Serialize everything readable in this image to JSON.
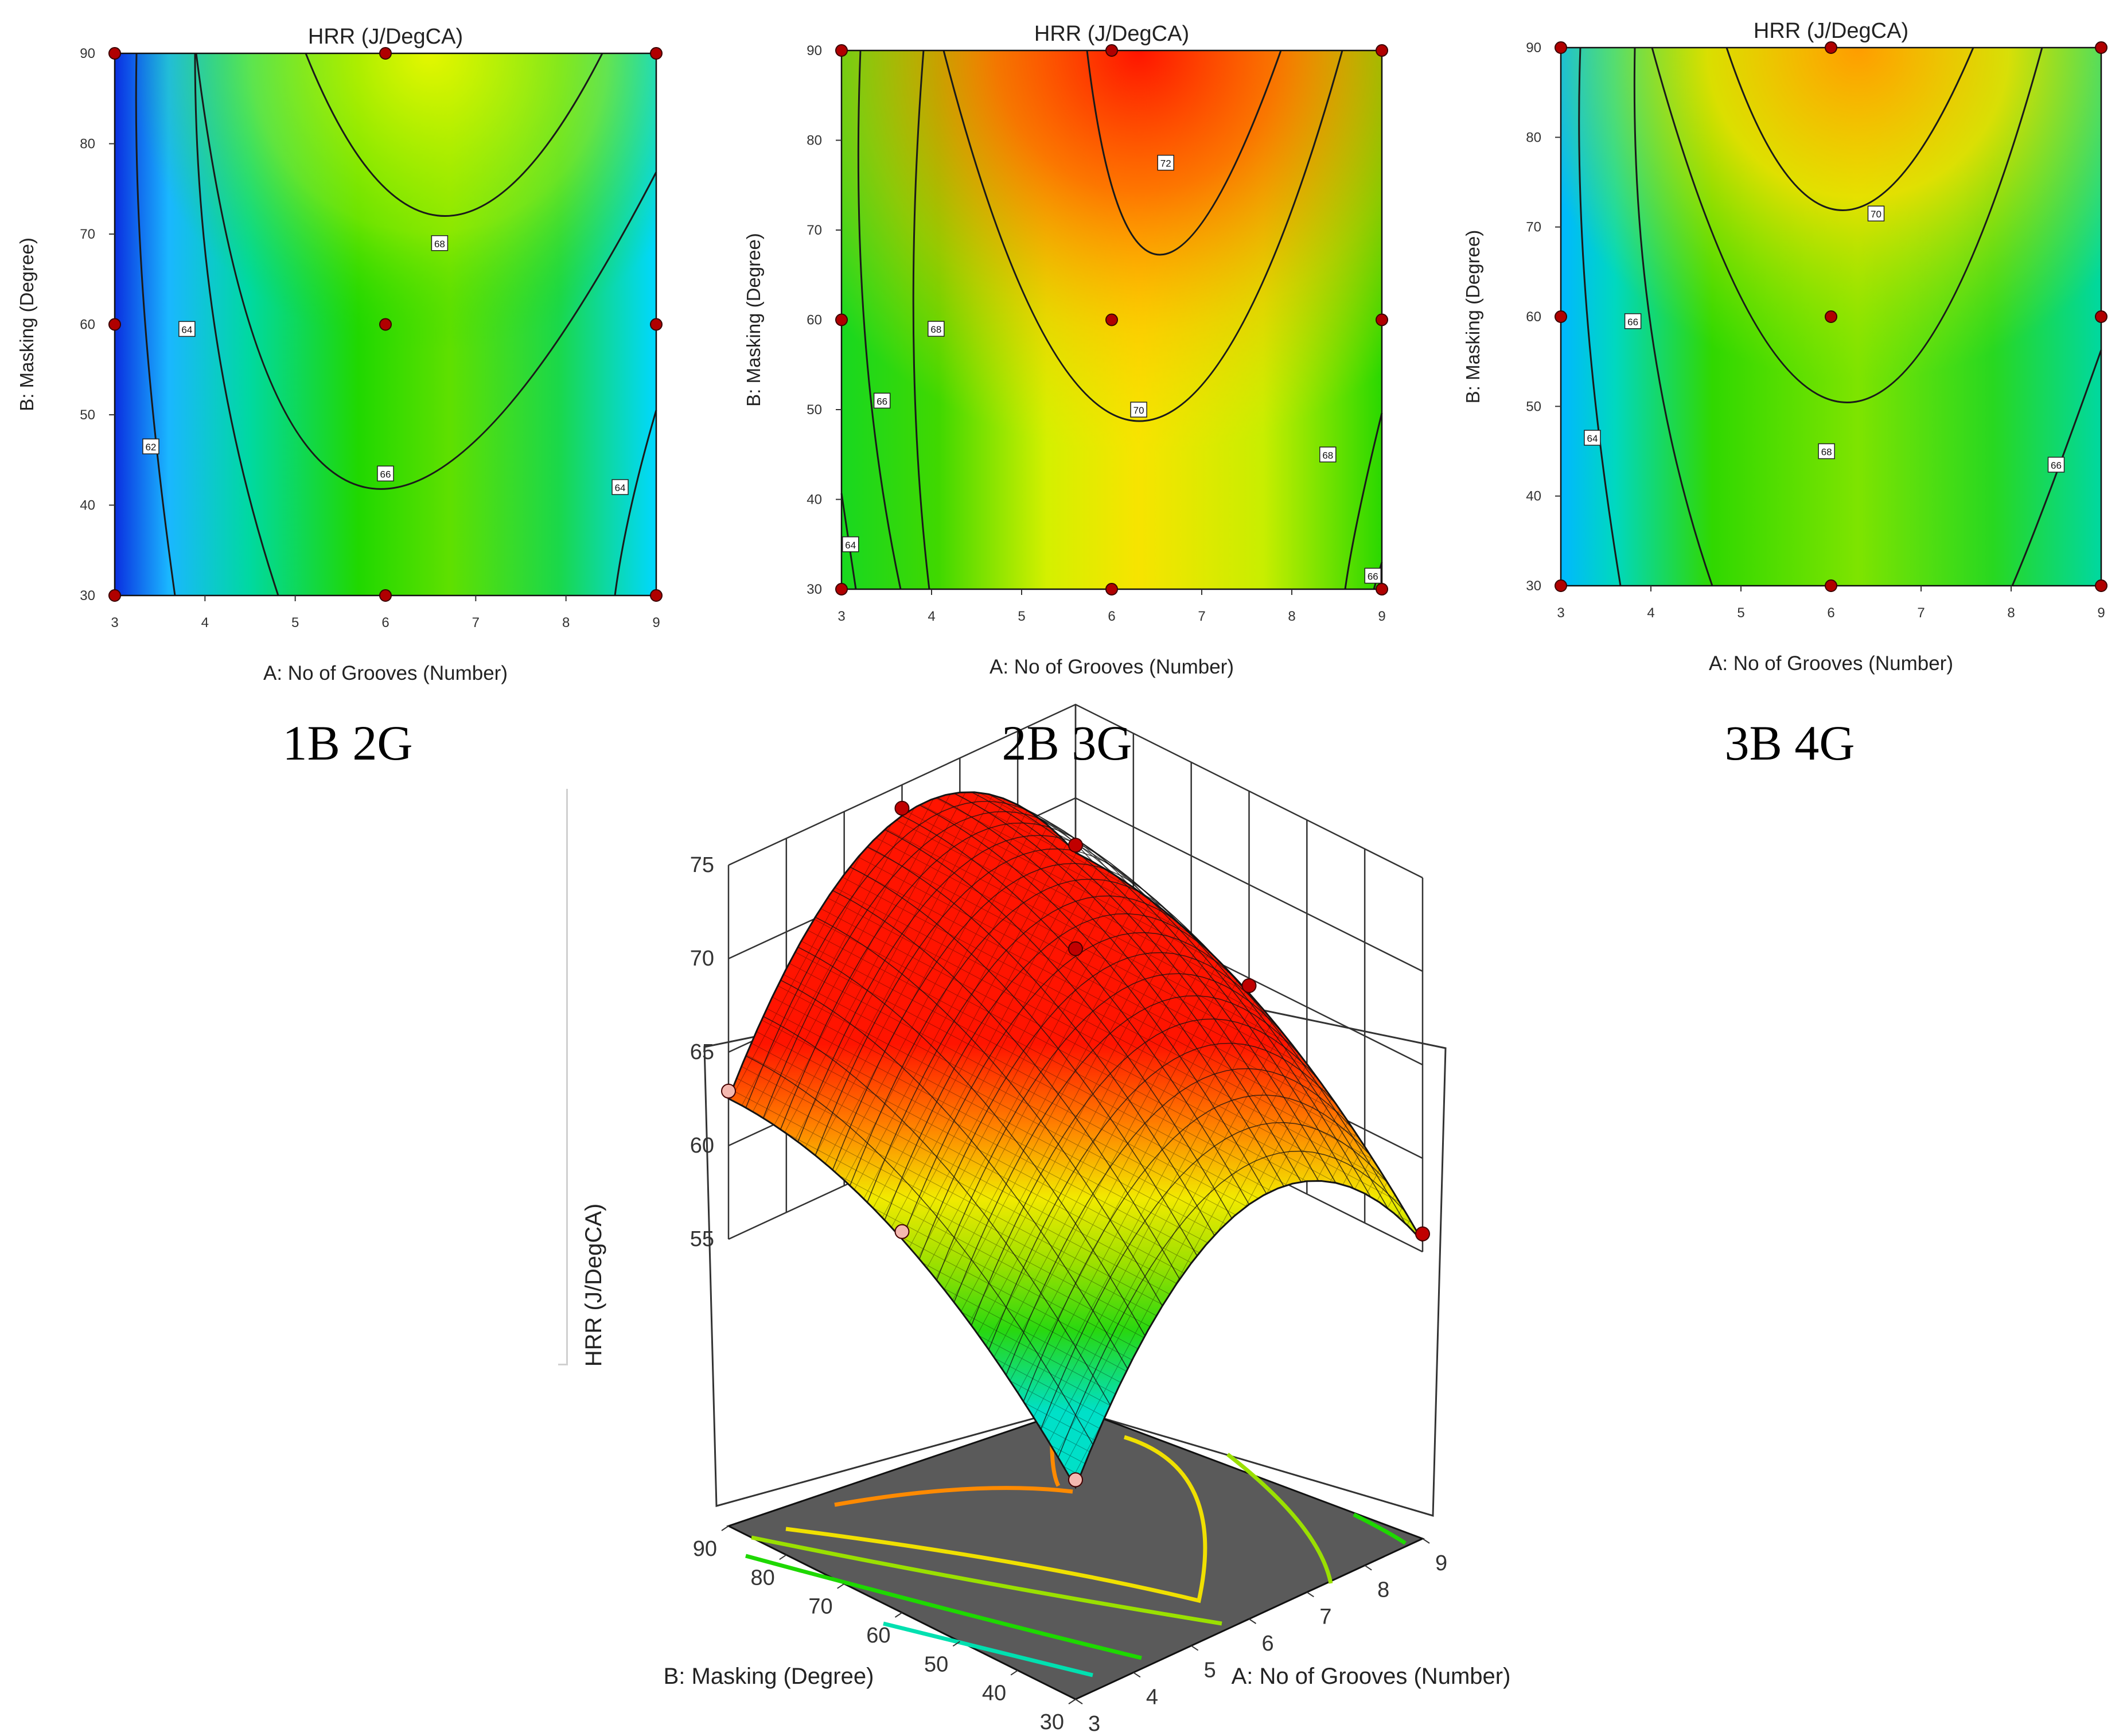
{
  "chart_data": [
    {
      "type": "contour",
      "panel": "1B 2G",
      "title": "HRR (J/DegCA)",
      "xlabel": "A: No of Grooves (Number)",
      "ylabel": "B: Masking (Degree)",
      "xlim": [
        3,
        9
      ],
      "ylim": [
        30,
        90
      ],
      "xticks": [
        "3",
        "4",
        "5",
        "6",
        "7",
        "8",
        "9"
      ],
      "yticks": [
        "30",
        "40",
        "50",
        "60",
        "70",
        "80",
        "90"
      ],
      "contour_labels": [
        {
          "label": "62",
          "x": 3.4,
          "y": 46.5
        },
        {
          "label": "64",
          "x": 3.8,
          "y": 59.5
        },
        {
          "label": "66",
          "x": 6.0,
          "y": 43.5
        },
        {
          "label": "68",
          "x": 6.6,
          "y": 69
        },
        {
          "label": "64",
          "x": 8.6,
          "y": 42
        }
      ],
      "design_points": [
        [
          3,
          30
        ],
        [
          6,
          30
        ],
        [
          9,
          30
        ],
        [
          3,
          60
        ],
        [
          6,
          60
        ],
        [
          9,
          60
        ],
        [
          3,
          90
        ],
        [
          6,
          90
        ],
        [
          9,
          90
        ]
      ],
      "colors": {
        "low": "#0a2fe0",
        "mid": "#14d800",
        "high": "#e4f400"
      }
    },
    {
      "type": "contour",
      "panel": "2B 3G",
      "title": "HRR (J/DegCA)",
      "xlabel": "A: No of Grooves (Number)",
      "ylabel": "B: Masking (Degree)",
      "xlim": [
        3,
        9
      ],
      "ylim": [
        30,
        90
      ],
      "xticks": [
        "3",
        "4",
        "5",
        "6",
        "7",
        "8",
        "9"
      ],
      "yticks": [
        "30",
        "40",
        "50",
        "60",
        "70",
        "80",
        "90"
      ],
      "contour_labels": [
        {
          "label": "64",
          "x": 3.1,
          "y": 35
        },
        {
          "label": "66",
          "x": 3.45,
          "y": 51
        },
        {
          "label": "68",
          "x": 4.05,
          "y": 59
        },
        {
          "label": "70",
          "x": 6.3,
          "y": 50
        },
        {
          "label": "72",
          "x": 6.6,
          "y": 77.5
        },
        {
          "label": "68",
          "x": 8.4,
          "y": 45
        },
        {
          "label": "66",
          "x": 8.9,
          "y": 31.5
        }
      ],
      "design_points": [
        [
          3,
          30
        ],
        [
          6,
          30
        ],
        [
          9,
          30
        ],
        [
          3,
          60
        ],
        [
          6,
          60
        ],
        [
          9,
          60
        ],
        [
          3,
          90
        ],
        [
          6,
          90
        ],
        [
          9,
          90
        ]
      ],
      "colors": {
        "low": "#00d800",
        "mid": "#f4f400",
        "high": "#ff1500"
      }
    },
    {
      "type": "contour",
      "panel": "3B 4G",
      "title": "HRR (J/DegCA)",
      "xlabel": "A: No of Grooves (Number)",
      "ylabel": "B: Masking (Degree)",
      "xlim": [
        3,
        9
      ],
      "ylim": [
        30,
        90
      ],
      "xticks": [
        "3",
        "4",
        "5",
        "6",
        "7",
        "8",
        "9"
      ],
      "yticks": [
        "30",
        "40",
        "50",
        "60",
        "70",
        "80",
        "90"
      ],
      "contour_labels": [
        {
          "label": "64",
          "x": 3.35,
          "y": 46.5
        },
        {
          "label": "66",
          "x": 3.8,
          "y": 59.5
        },
        {
          "label": "68",
          "x": 5.95,
          "y": 45
        },
        {
          "label": "70",
          "x": 6.5,
          "y": 71.5
        },
        {
          "label": "66",
          "x": 8.5,
          "y": 43.5
        }
      ],
      "design_points": [
        [
          3,
          30
        ],
        [
          6,
          30
        ],
        [
          9,
          30
        ],
        [
          3,
          60
        ],
        [
          6,
          60
        ],
        [
          9,
          60
        ],
        [
          3,
          90
        ],
        [
          6,
          90
        ],
        [
          9,
          90
        ]
      ],
      "colors": {
        "low": "#00c8ff",
        "mid": "#14d800",
        "high": "#ff9a00"
      }
    },
    {
      "type": "surface3d",
      "zlabel": "HRR (J/DegCA)",
      "xlabel": "A: No of Grooves (Number)",
      "ylabel": "B: Masking (Degree)",
      "xlim": [
        3,
        9
      ],
      "ylim": [
        30,
        90
      ],
      "zlim": [
        55,
        75
      ],
      "xticks": [
        "3",
        "4",
        "5",
        "6",
        "7",
        "8",
        "9"
      ],
      "yticks": [
        "30",
        "40",
        "50",
        "60",
        "70",
        "80",
        "90"
      ],
      "zticks": [
        "55",
        "60",
        "65",
        "70",
        "75"
      ],
      "surface_range": [
        56,
        73.5
      ]
    }
  ],
  "captions": [
    "1B 2G",
    "2B 3G",
    "3B 4G"
  ]
}
